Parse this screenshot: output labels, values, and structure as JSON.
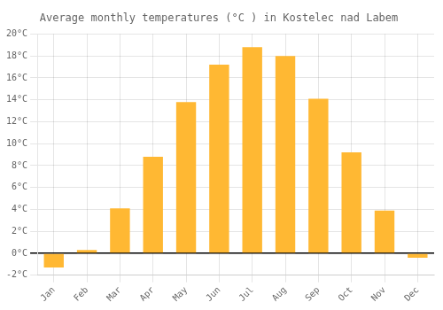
{
  "chart_data": {
    "type": "bar",
    "title": "Average monthly temperatures (°C ) in Kostelec nad Labem",
    "categories": [
      "Jan",
      "Feb",
      "Mar",
      "Apr",
      "May",
      "Jun",
      "Jul",
      "Aug",
      "Sep",
      "Oct",
      "Nov",
      "Dec"
    ],
    "values": [
      -1.3,
      0.3,
      4.1,
      8.8,
      13.8,
      17.2,
      18.8,
      18.0,
      14.1,
      9.2,
      3.9,
      -0.4
    ],
    "color": "#FFB833",
    "ylim": [
      -2,
      20
    ],
    "yticks": [
      {
        "value": -2,
        "label": "-2°C"
      },
      {
        "value": 0,
        "label": "0°C"
      },
      {
        "value": 2,
        "label": "2°C"
      },
      {
        "value": 4,
        "label": "4°C"
      },
      {
        "value": 6,
        "label": "6°C"
      },
      {
        "value": 8,
        "label": "8°C"
      },
      {
        "value": 10,
        "label": "10°C"
      },
      {
        "value": 12,
        "label": "12°C"
      },
      {
        "value": 14,
        "label": "14°C"
      },
      {
        "value": 16,
        "label": "16°C"
      },
      {
        "value": 18,
        "label": "18°C"
      },
      {
        "value": 20,
        "label": "20°C"
      }
    ],
    "grid": true
  }
}
